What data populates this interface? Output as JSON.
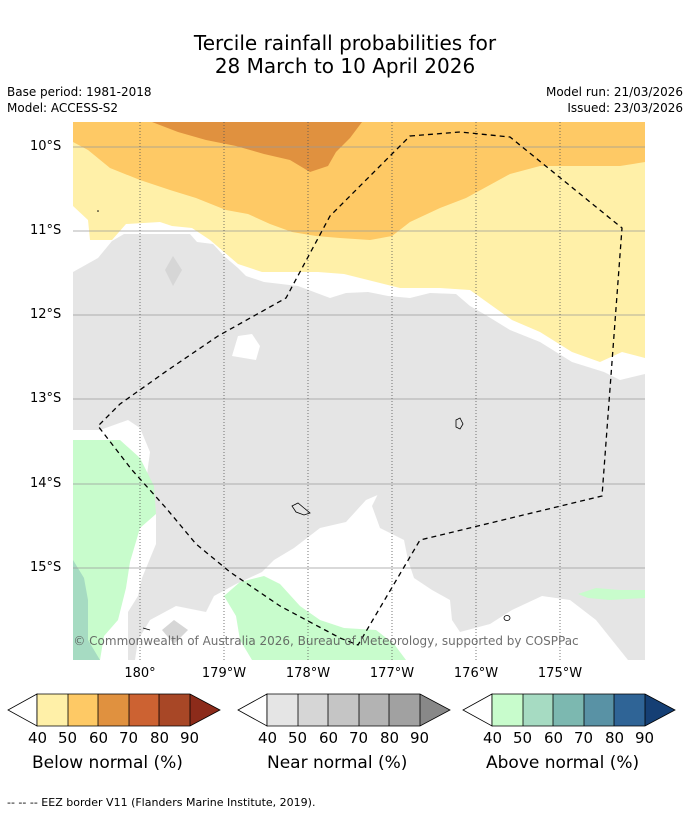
{
  "title_line1": "Tercile rainfall probabilities for",
  "title_line2": "28 March to 10 April 2026",
  "base_period": "Base period: 1981-2018",
  "model": "Model: ACCESS-S2",
  "model_run": "Model run: 21/03/2026",
  "issued": "Issued: 23/03/2026",
  "lat_labels": [
    "10°S",
    "11°S",
    "12°S",
    "13°S",
    "14°S",
    "15°S"
  ],
  "lon_labels": [
    "180°",
    "179°W",
    "178°W",
    "177°W",
    "176°W",
    "175°W"
  ],
  "copyright": "© Commonwealth of Australia 2026, Bureau of Meteorology, supported by COSPPac",
  "colorbars": [
    {
      "title": "Below normal (%)",
      "ticks": [
        "40",
        "50",
        "60",
        "70",
        "80",
        "90"
      ],
      "colors": [
        "#fff0a8",
        "#fec965",
        "#e0913f",
        "#cc6232",
        "#a84726",
        "#8c2b1a"
      ]
    },
    {
      "title": "Near normal (%)",
      "ticks": [
        "40",
        "50",
        "60",
        "70",
        "80",
        "90"
      ],
      "colors": [
        "#e5e5e5",
        "#d6d6d6",
        "#c5c5c5",
        "#b3b3b3",
        "#a1a1a1",
        "#888888"
      ]
    },
    {
      "title": "Above normal (%)",
      "ticks": [
        "40",
        "50",
        "60",
        "70",
        "80",
        "90"
      ],
      "colors": [
        "#c8fccc",
        "#a6dbc2",
        "#7cb8b0",
        "#5992a5",
        "#2f6496",
        "#153f74"
      ]
    }
  ],
  "footnote": "--  --  -- EEZ border V11 (Flanders Marine Institute, 2019)."
}
